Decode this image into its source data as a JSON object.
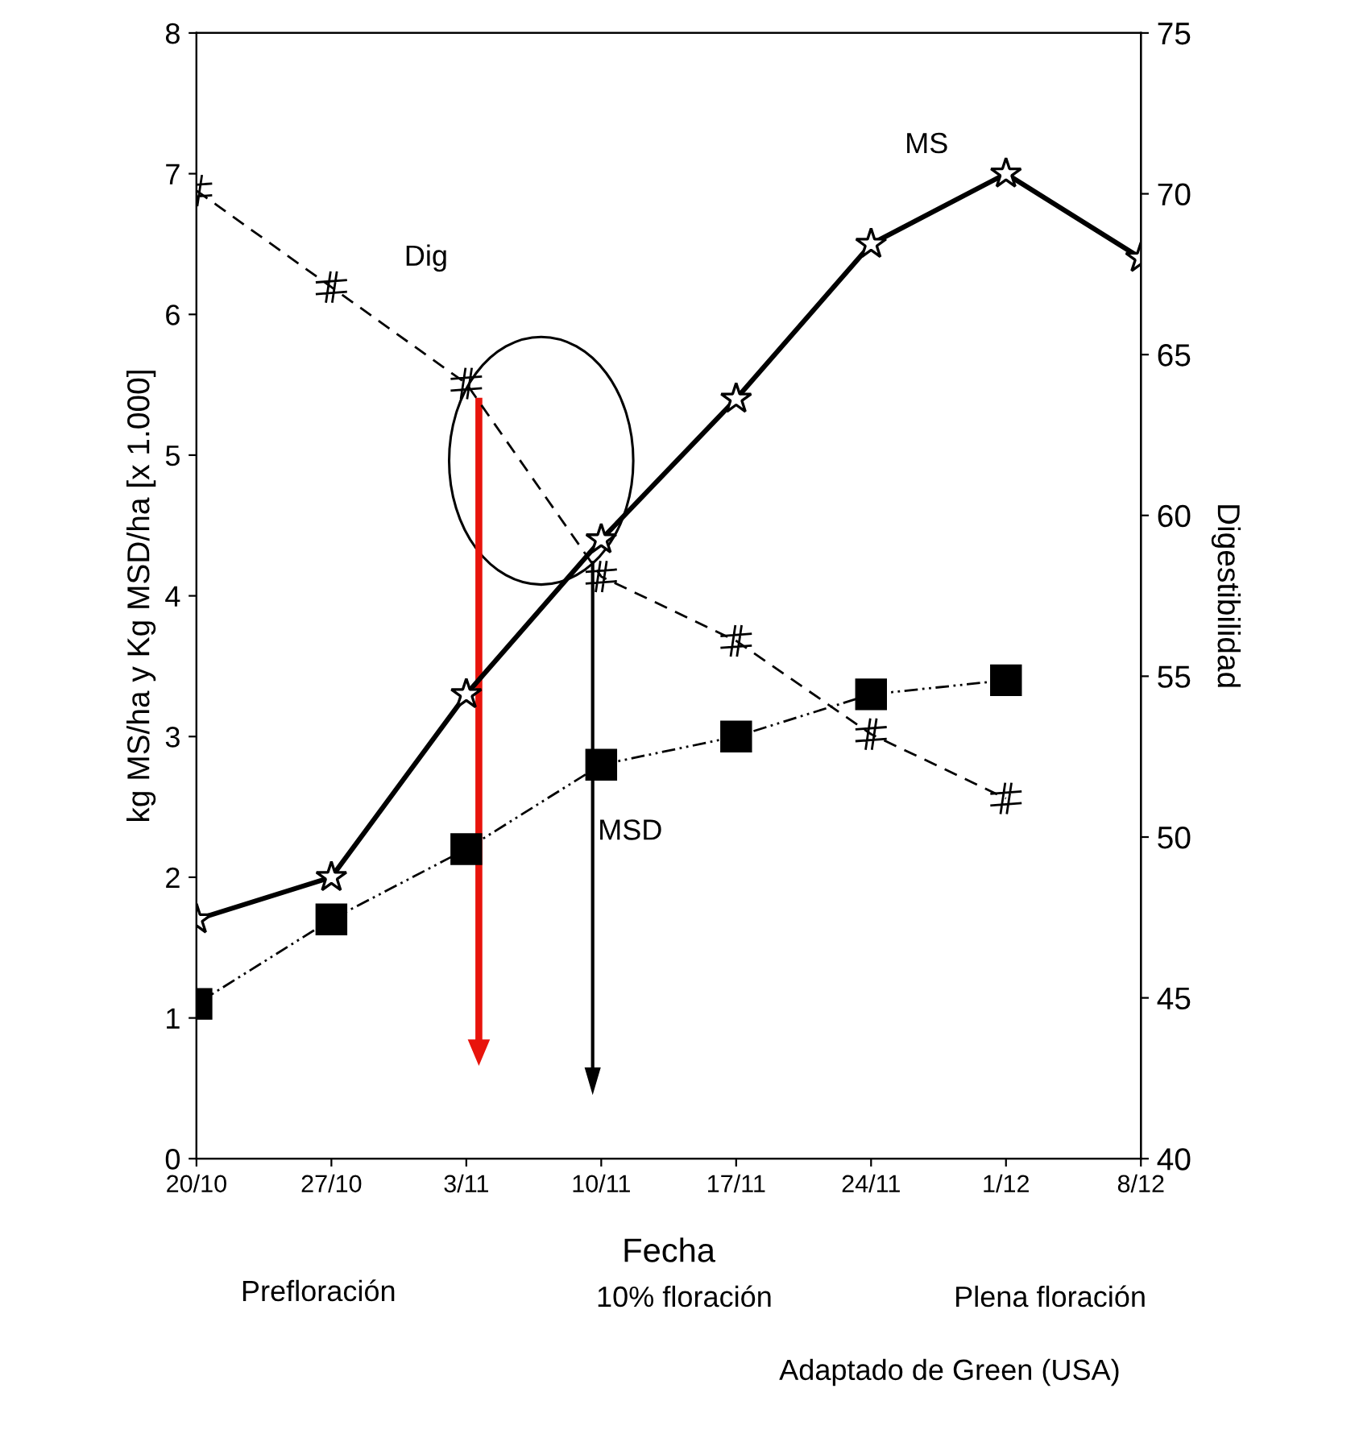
{
  "chart_data": {
    "type": "line",
    "categories": [
      "20/10",
      "27/10",
      "3/11",
      "10/11",
      "17/11",
      "24/11",
      "1/12",
      "8/12"
    ],
    "xlabel": "Fecha",
    "ylabel": "kg MS/ha y Kg MSD/ha [x 1.000]",
    "y2label": "Digestibilidad",
    "ylim": [
      0,
      8
    ],
    "yticks": [
      0,
      1,
      2,
      3,
      4,
      5,
      6,
      7,
      8
    ],
    "y2lim": [
      40,
      75
    ],
    "y2ticks": [
      40,
      45,
      50,
      55,
      60,
      65,
      70,
      75
    ],
    "grid": false,
    "legend": false,
    "series": [
      {
        "name": "MS",
        "color": "#000000",
        "marker": "star",
        "line_style": "solid",
        "values": [
          1.7,
          2.0,
          3.3,
          4.4,
          5.4,
          6.5,
          7.0,
          6.4
        ]
      },
      {
        "name": "Dig",
        "color": "#000000",
        "marker": "cross",
        "line_style": "dashed",
        "axis": "y2",
        "values": [
          70.1,
          67.1,
          64.1,
          58.1,
          56.1,
          53.2,
          51.2,
          null
        ]
      },
      {
        "name": "MSD",
        "color": "#000000",
        "marker": "square",
        "line_style": "dotted",
        "values": [
          1.1,
          1.7,
          2.2,
          2.8,
          3.0,
          3.3,
          3.4,
          null
        ]
      }
    ],
    "annotations": [
      "Prefloración",
      "10% floración",
      "Plena floración",
      "Adaptado de Green (USA)"
    ]
  }
}
